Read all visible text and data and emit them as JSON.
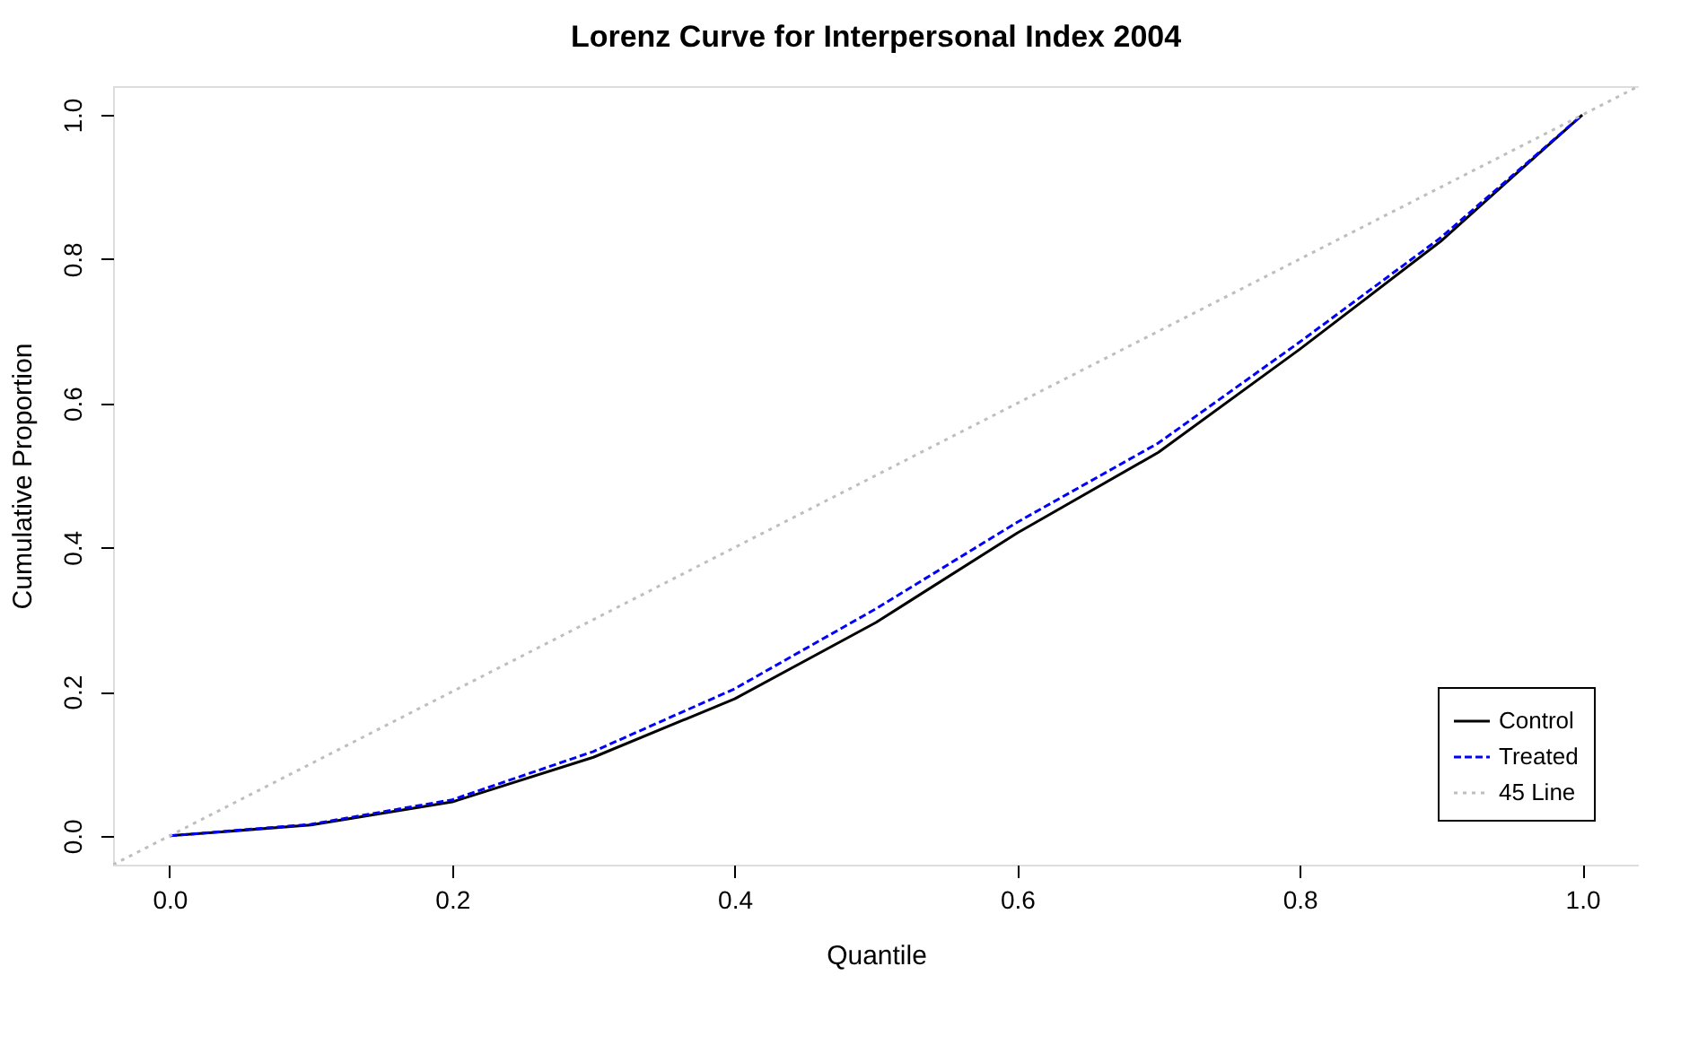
{
  "chart_data": {
    "type": "line",
    "title": "Lorenz Curve for Interpersonal Index 2004",
    "xlabel": "Quantile",
    "ylabel": "Cumulative Proportion",
    "xlim": [
      -0.04,
      1.04
    ],
    "ylim": [
      -0.04,
      1.04
    ],
    "xticks": [
      {
        "value": 0,
        "label": "0.0"
      },
      0.2,
      0.4,
      0.6,
      0.8,
      {
        "value": 1,
        "label": "1.0"
      }
    ],
    "yticks": [
      {
        "value": 0,
        "label": "0.0"
      },
      0.2,
      0.4,
      0.6,
      0.8,
      {
        "value": 1,
        "label": "1.0"
      }
    ],
    "grid": false,
    "legend": "bottom right",
    "marker": "none",
    "series": [
      {
        "name": "Control",
        "color": "#000000",
        "line_style": "solid",
        "x": [
          0,
          0.1,
          0.2,
          0.3,
          0.4,
          0.5,
          0.6,
          0.7,
          0.8,
          0.9,
          0.95,
          1.0
        ],
        "values": [
          0,
          0.015,
          0.047,
          0.109,
          0.19,
          0.296,
          0.42,
          0.532,
          0.675,
          0.825,
          0.913,
          1.0
        ]
      },
      {
        "name": "Treated",
        "color": "#0000ff",
        "line_style": "dashed",
        "x": [
          0,
          0.1,
          0.2,
          0.3,
          0.4,
          0.5,
          0.6,
          0.7,
          0.8,
          0.9,
          0.95,
          1.0
        ],
        "values": [
          0,
          0.016,
          0.05,
          0.117,
          0.204,
          0.315,
          0.435,
          0.545,
          0.685,
          0.83,
          0.915,
          1.0
        ]
      },
      {
        "name": "45 Line",
        "color": "#bebebe",
        "line_style": "dotted",
        "x": [
          -0.04,
          1.04
        ],
        "values": [
          -0.04,
          1.04
        ]
      }
    ]
  }
}
